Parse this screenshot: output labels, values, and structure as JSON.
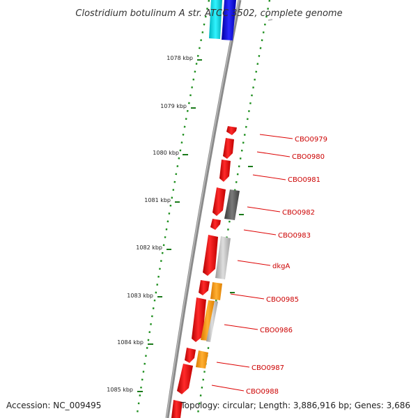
{
  "header": {
    "title": "Clostridium botulinum A str. ATCC 3502, complete genome"
  },
  "footer": {
    "accession": "Accession: NC_009495",
    "topology": "Topology: circular; Length: 3,886,916 bp; Genes: 3,686"
  },
  "scale": {
    "unit": "kbp",
    "ticks": [
      "1078 kbp",
      "1079 kbp",
      "1080 kbp",
      "1081 kbp",
      "1082 kbp",
      "1083 kbp",
      "1084 kbp",
      "1085 kbp"
    ]
  },
  "colors": {
    "backbone": "#8a8a8a",
    "ticks": "#1a7a1a",
    "gc_dots": "#1f8f1f",
    "cds_forward": "#ee0000",
    "label": "#cc0000",
    "cyan_feature": "#00e0e8",
    "blue_feature": "#0000dd",
    "dark_gray_feature": "#555555",
    "light_gray_feature": "#bbbbbb",
    "orange_feature": "#ff9900"
  },
  "genes": [
    {
      "label": "CBO0979"
    },
    {
      "label": "CBO0980"
    },
    {
      "label": "CBO0981"
    },
    {
      "label": "CBO0982"
    },
    {
      "label": "CBO0983"
    },
    {
      "label": "dkgA"
    },
    {
      "label": "CBO0985"
    },
    {
      "label": "CBO0986"
    },
    {
      "label": "CBO0987"
    },
    {
      "label": "CBO0988"
    }
  ]
}
